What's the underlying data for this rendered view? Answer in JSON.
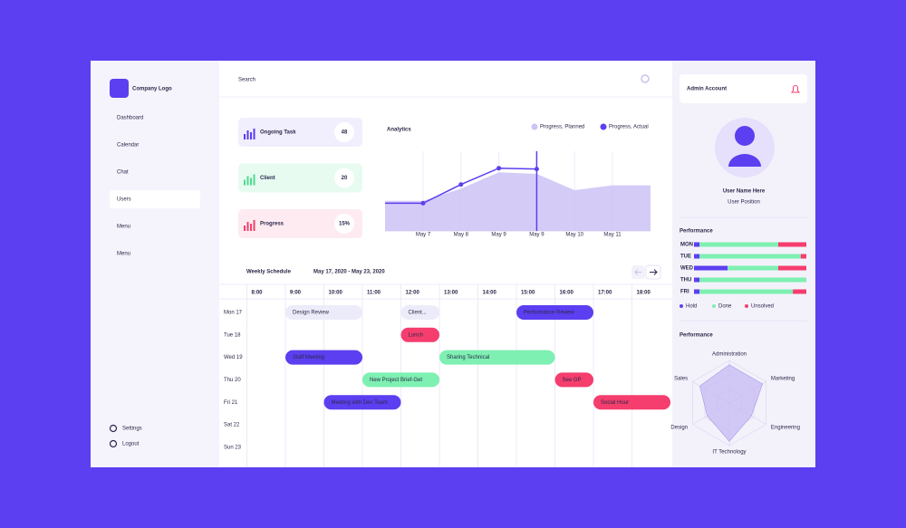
{
  "sidebar": {
    "logo": "Company Logo",
    "nav": [
      "Dashboard",
      "Calendar",
      "Chat",
      "Users",
      "Menu",
      "Menu"
    ],
    "active": 3,
    "footer": [
      "Settings",
      "Logout"
    ]
  },
  "search": "Search",
  "stats": [
    {
      "label": "Ongoing Task",
      "value": "48",
      "color": "#5b3ff0",
      "bg": "#f1eefd"
    },
    {
      "label": "Client",
      "value": "20",
      "color": "#4fd98f",
      "bg": "#e7fbf1"
    },
    {
      "label": "Progress",
      "value": "15%",
      "color": "#f2416f",
      "bg": "#fdebf1"
    }
  ],
  "analytics": {
    "title": "Analytics",
    "categories": [
      "May 7",
      "May 8",
      "May 9",
      "May 9",
      "May 10",
      "May 11"
    ],
    "series": [
      {
        "name": "Progress, Planned",
        "color": "#cdc3f5",
        "values": [
          37,
          52,
          72,
          70,
          50,
          56
        ]
      },
      {
        "name": "Progress, Actual",
        "color": "#5b3ff0",
        "values": [
          34,
          57,
          77,
          76,
          null,
          null
        ]
      }
    ]
  },
  "schedule": {
    "title": "Weekly Schedule",
    "range": "May 17, 2020 - May 23, 2020",
    "times": [
      "8:00",
      "9:00",
      "10:00",
      "11:00",
      "12:00",
      "13:00",
      "14:00",
      "15:00",
      "16:00",
      "17:00",
      "18:00"
    ],
    "days": [
      "Mon 17",
      "Tue 18",
      "Wed 19",
      "Thu 20",
      "Fri 21",
      "Sat 22",
      "Sun 23"
    ],
    "events": [
      {
        "label": "Design Review",
        "day": 0,
        "start": 9,
        "end": 11,
        "color": "#ecebf9",
        "faded": true
      },
      {
        "label": "Client...",
        "day": 0,
        "start": 12,
        "end": 13,
        "color": "#ecebf9",
        "faded": true
      },
      {
        "label": "Performance Review",
        "day": 0,
        "start": 15,
        "end": 17,
        "color": "#5b3ff0",
        "faded": false
      },
      {
        "label": "Lunch",
        "day": 1,
        "start": 12,
        "end": 13,
        "color": "#f53d6e",
        "faded": false
      },
      {
        "label": "Staff Meeting",
        "day": 2,
        "start": 9,
        "end": 11,
        "color": "#5b3ff0",
        "faded": false
      },
      {
        "label": "Sharing Technical",
        "day": 2,
        "start": 13,
        "end": 16,
        "color": "#7ef0b2",
        "faded": false
      },
      {
        "label": "New Project Brief-Get",
        "day": 3,
        "start": 11,
        "end": 13,
        "color": "#7ef0b2",
        "faded": false
      },
      {
        "label": "See GP",
        "day": 3,
        "start": 16,
        "end": 17,
        "color": "#f53d6e",
        "faded": false
      },
      {
        "label": "Meeting with Dev Team",
        "day": 4,
        "start": 10,
        "end": 12,
        "color": "#5b3ff0",
        "faded": false
      },
      {
        "label": "Social Hour",
        "day": 4,
        "start": 17,
        "end": 19,
        "color": "#f53d6e",
        "faded": false
      }
    ]
  },
  "profile": {
    "account": "Admin Account",
    "name": "User Name Here",
    "position": "User Position"
  },
  "performance": {
    "title": "Performance",
    "legend": [
      {
        "name": "Hold",
        "color": "#5b3ff0"
      },
      {
        "name": "Done",
        "color": "#7ef0b2"
      },
      {
        "name": "Unsolved",
        "color": "#f53d6e"
      }
    ],
    "days": [
      {
        "day": "MON",
        "values": [
          5,
          70,
          25
        ]
      },
      {
        "day": "TUE",
        "values": [
          5,
          90,
          5
        ]
      },
      {
        "day": "WED",
        "values": [
          30,
          45,
          25
        ]
      },
      {
        "day": "THU",
        "values": [
          5,
          95,
          0
        ]
      },
      {
        "day": "FRI",
        "values": [
          5,
          83,
          12
        ]
      }
    ]
  },
  "radar": {
    "title": "Performance",
    "axes": [
      "Administration",
      "Marketing",
      "Engineering",
      "IT Technology",
      "Design",
      "Sales"
    ],
    "values": [
      90,
      90,
      60,
      90,
      60,
      80
    ],
    "rlim": [
      0,
      100
    ],
    "color": "#c7b9f3"
  }
}
